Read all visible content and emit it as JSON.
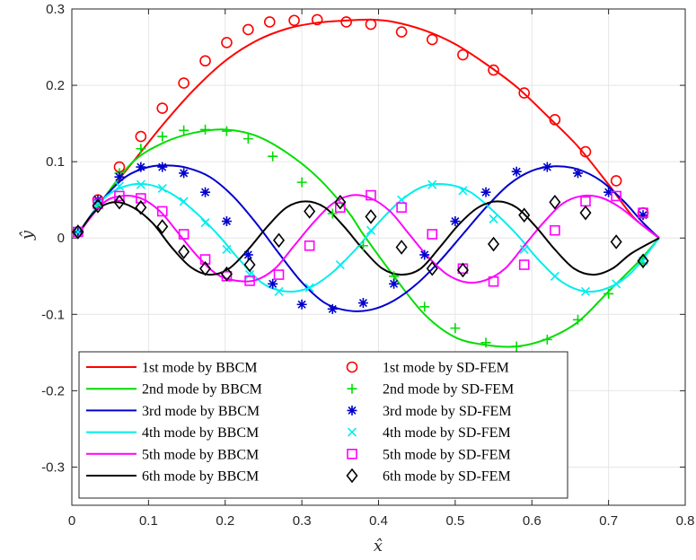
{
  "chart_data": {
    "type": "line",
    "xlabel": "x̂",
    "ylabel": "ŷ",
    "xlim": [
      0,
      0.8
    ],
    "ylim": [
      -0.35,
      0.3
    ],
    "xticks": [
      "0",
      "0.1",
      "0.2",
      "0.3",
      "0.4",
      "0.5",
      "0.6",
      "0.7",
      "0.8"
    ],
    "yticks": [
      "-0.3",
      "-0.2",
      "-0.1",
      "0",
      "0.1",
      "0.2",
      "0.3"
    ],
    "grid": true,
    "legend_position": "bottom-left",
    "line_series": [
      {
        "name": "1st mode by BBCM",
        "color": "#ff0000",
        "x": [
          0.008,
          0.04,
          0.08,
          0.12,
          0.16,
          0.2,
          0.24,
          0.28,
          0.32,
          0.36,
          0.39,
          0.42,
          0.46,
          0.5,
          0.54,
          0.58,
          0.62,
          0.66,
          0.7,
          0.73,
          0.75,
          0.766
        ],
        "y": [
          0.005,
          0.05,
          0.1,
          0.15,
          0.195,
          0.232,
          0.258,
          0.274,
          0.282,
          0.285,
          0.286,
          0.283,
          0.272,
          0.254,
          0.228,
          0.198,
          0.16,
          0.12,
          0.07,
          0.03,
          0.012,
          0
        ]
      },
      {
        "name": "2nd mode by BBCM",
        "color": "#00dd00",
        "x": [
          0.008,
          0.04,
          0.08,
          0.12,
          0.16,
          0.2,
          0.24,
          0.28,
          0.32,
          0.36,
          0.38,
          0.42,
          0.46,
          0.5,
          0.54,
          0.58,
          0.62,
          0.66,
          0.7,
          0.74,
          0.766
        ],
        "y": [
          0.005,
          0.05,
          0.1,
          0.125,
          0.138,
          0.142,
          0.134,
          0.112,
          0.08,
          0.035,
          0.005,
          -0.05,
          -0.1,
          -0.13,
          -0.14,
          -0.142,
          -0.132,
          -0.11,
          -0.07,
          -0.03,
          0
        ]
      },
      {
        "name": "3rd mode by BBCM",
        "color": "#0000cd",
        "x": [
          0.008,
          0.04,
          0.07,
          0.1,
          0.125,
          0.15,
          0.18,
          0.21,
          0.24,
          0.27,
          0.3,
          0.33,
          0.36,
          0.39,
          0.42,
          0.45,
          0.48,
          0.51,
          0.54,
          0.57,
          0.6,
          0.63,
          0.66,
          0.69,
          0.72,
          0.745,
          0.766
        ],
        "y": [
          0.005,
          0.05,
          0.08,
          0.093,
          0.095,
          0.092,
          0.08,
          0.055,
          0.02,
          -0.02,
          -0.058,
          -0.085,
          -0.095,
          -0.094,
          -0.082,
          -0.06,
          -0.03,
          0.005,
          0.04,
          0.07,
          0.088,
          0.094,
          0.09,
          0.075,
          0.048,
          0.02,
          0
        ]
      },
      {
        "name": "4th mode by BBCM",
        "color": "#00eeee",
        "x": [
          0.008,
          0.04,
          0.07,
          0.1,
          0.13,
          0.16,
          0.19,
          0.22,
          0.25,
          0.28,
          0.31,
          0.34,
          0.37,
          0.4,
          0.43,
          0.46,
          0.49,
          0.52,
          0.55,
          0.58,
          0.61,
          0.64,
          0.67,
          0.7,
          0.73,
          0.766
        ],
        "y": [
          0.005,
          0.05,
          0.068,
          0.07,
          0.058,
          0.035,
          0.005,
          -0.03,
          -0.06,
          -0.07,
          -0.065,
          -0.045,
          -0.015,
          0.02,
          0.05,
          0.068,
          0.07,
          0.06,
          0.035,
          0.005,
          -0.03,
          -0.058,
          -0.07,
          -0.065,
          -0.045,
          0
        ]
      },
      {
        "name": "5th mode by BBCM",
        "color": "#ff00ff",
        "x": [
          0.008,
          0.04,
          0.065,
          0.09,
          0.115,
          0.14,
          0.165,
          0.19,
          0.215,
          0.24,
          0.265,
          0.29,
          0.315,
          0.34,
          0.365,
          0.39,
          0.415,
          0.44,
          0.465,
          0.49,
          0.515,
          0.54,
          0.565,
          0.59,
          0.615,
          0.64,
          0.665,
          0.69,
          0.715,
          0.74,
          0.766
        ],
        "y": [
          0.005,
          0.045,
          0.055,
          0.052,
          0.035,
          0.005,
          -0.025,
          -0.048,
          -0.056,
          -0.055,
          -0.04,
          -0.01,
          0.02,
          0.045,
          0.056,
          0.052,
          0.035,
          0.005,
          -0.025,
          -0.048,
          -0.058,
          -0.055,
          -0.04,
          -0.01,
          0.02,
          0.045,
          0.055,
          0.053,
          0.04,
          0.02,
          0
        ]
      },
      {
        "name": "6th mode by BBCM",
        "color": "#000000",
        "x": [
          0.008,
          0.03,
          0.055,
          0.08,
          0.105,
          0.13,
          0.155,
          0.18,
          0.205,
          0.23,
          0.255,
          0.28,
          0.305,
          0.33,
          0.355,
          0.38,
          0.405,
          0.43,
          0.455,
          0.48,
          0.505,
          0.53,
          0.555,
          0.58,
          0.605,
          0.63,
          0.655,
          0.68,
          0.705,
          0.73,
          0.766
        ],
        "y": [
          0.005,
          0.035,
          0.047,
          0.04,
          0.02,
          -0.012,
          -0.038,
          -0.048,
          -0.04,
          -0.015,
          0.015,
          0.04,
          0.048,
          0.04,
          0.015,
          -0.015,
          -0.04,
          -0.048,
          -0.04,
          -0.012,
          0.018,
          0.04,
          0.048,
          0.04,
          0.015,
          -0.015,
          -0.04,
          -0.048,
          -0.04,
          -0.02,
          0
        ]
      }
    ],
    "marker_series": [
      {
        "name": "1st mode by SD-FEM",
        "color": "#ff0000",
        "marker": "circle",
        "x": [
          0.008,
          0.034,
          0.062,
          0.09,
          0.118,
          0.146,
          0.174,
          0.202,
          0.23,
          0.258,
          0.29,
          0.32,
          0.358,
          0.39,
          0.43,
          0.47,
          0.51,
          0.55,
          0.59,
          0.63,
          0.67,
          0.71,
          0.745
        ],
        "y": [
          0.008,
          0.05,
          0.093,
          0.133,
          0.17,
          0.203,
          0.232,
          0.256,
          0.273,
          0.283,
          0.285,
          0.286,
          0.283,
          0.28,
          0.27,
          0.26,
          0.24,
          0.22,
          0.19,
          0.155,
          0.113,
          0.075,
          0.033
        ]
      },
      {
        "name": "2nd mode by SD-FEM",
        "color": "#00dd00",
        "marker": "plus",
        "x": [
          0.008,
          0.034,
          0.062,
          0.09,
          0.118,
          0.146,
          0.174,
          0.202,
          0.23,
          0.262,
          0.3,
          0.34,
          0.38,
          0.42,
          0.46,
          0.5,
          0.54,
          0.58,
          0.62,
          0.66,
          0.7,
          0.745
        ],
        "y": [
          0.008,
          0.045,
          0.085,
          0.117,
          0.133,
          0.141,
          0.142,
          0.14,
          0.13,
          0.107,
          0.073,
          0.032,
          -0.01,
          -0.05,
          -0.09,
          -0.118,
          -0.137,
          -0.142,
          -0.133,
          -0.107,
          -0.073,
          -0.033
        ]
      },
      {
        "name": "3rd mode by SD-FEM",
        "color": "#0000cd",
        "marker": "asterisk",
        "x": [
          0.008,
          0.034,
          0.062,
          0.09,
          0.118,
          0.146,
          0.174,
          0.202,
          0.23,
          0.262,
          0.3,
          0.34,
          0.38,
          0.42,
          0.46,
          0.5,
          0.54,
          0.58,
          0.62,
          0.66,
          0.7,
          0.745
        ],
        "y": [
          0.008,
          0.05,
          0.08,
          0.093,
          0.093,
          0.085,
          0.06,
          0.022,
          -0.022,
          -0.06,
          -0.087,
          -0.093,
          -0.085,
          -0.06,
          -0.022,
          0.022,
          0.06,
          0.087,
          0.093,
          0.085,
          0.06,
          0.03
        ]
      },
      {
        "name": "4th mode by SD-FEM",
        "color": "#00eeee",
        "marker": "cross",
        "x": [
          0.008,
          0.034,
          0.062,
          0.09,
          0.118,
          0.146,
          0.174,
          0.202,
          0.232,
          0.27,
          0.31,
          0.35,
          0.39,
          0.43,
          0.47,
          0.51,
          0.55,
          0.59,
          0.63,
          0.67,
          0.71,
          0.745
        ],
        "y": [
          0.008,
          0.045,
          0.068,
          0.07,
          0.065,
          0.048,
          0.02,
          -0.015,
          -0.048,
          -0.07,
          -0.065,
          -0.035,
          0.01,
          0.05,
          0.07,
          0.062,
          0.025,
          -0.015,
          -0.05,
          -0.07,
          -0.06,
          -0.03
        ]
      },
      {
        "name": "5th mode by SD-FEM",
        "color": "#ff00ff",
        "marker": "square",
        "x": [
          0.008,
          0.034,
          0.062,
          0.09,
          0.118,
          0.146,
          0.174,
          0.202,
          0.232,
          0.27,
          0.31,
          0.35,
          0.39,
          0.43,
          0.47,
          0.51,
          0.55,
          0.59,
          0.63,
          0.67,
          0.71,
          0.745
        ],
        "y": [
          0.008,
          0.045,
          0.055,
          0.052,
          0.035,
          0.005,
          -0.028,
          -0.05,
          -0.056,
          -0.048,
          -0.01,
          0.04,
          0.056,
          0.04,
          0.005,
          -0.04,
          -0.057,
          -0.035,
          0.01,
          0.048,
          0.055,
          0.033
        ]
      },
      {
        "name": "6th mode by SD-FEM",
        "color": "#000000",
        "marker": "diamond",
        "x": [
          0.008,
          0.034,
          0.062,
          0.09,
          0.118,
          0.146,
          0.174,
          0.202,
          0.232,
          0.27,
          0.31,
          0.35,
          0.39,
          0.43,
          0.47,
          0.51,
          0.55,
          0.59,
          0.63,
          0.67,
          0.71,
          0.745
        ],
        "y": [
          0.008,
          0.042,
          0.047,
          0.04,
          0.015,
          -0.018,
          -0.04,
          -0.047,
          -0.035,
          -0.003,
          0.035,
          0.047,
          0.028,
          -0.012,
          -0.04,
          -0.042,
          -0.008,
          0.03,
          0.047,
          0.033,
          -0.005,
          -0.03
        ]
      }
    ]
  }
}
